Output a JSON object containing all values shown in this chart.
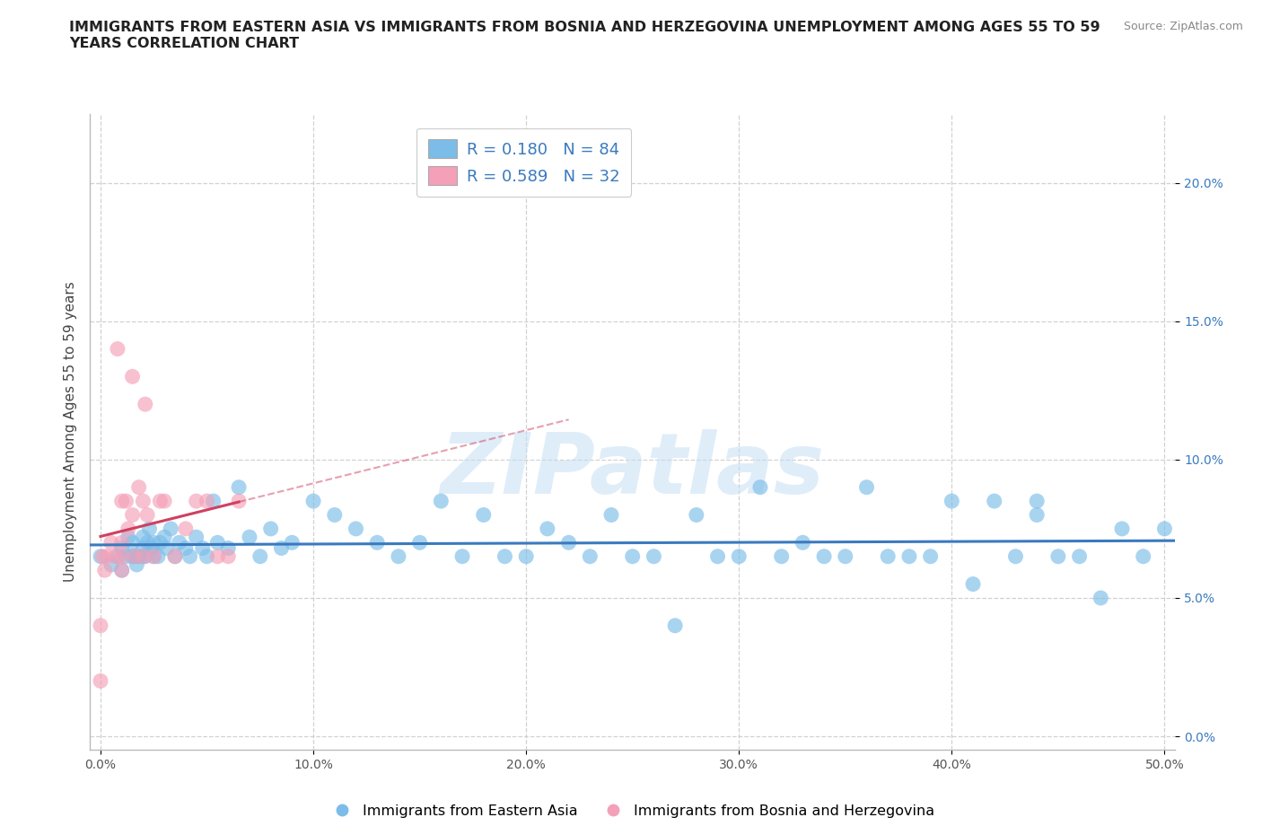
{
  "title": "IMMIGRANTS FROM EASTERN ASIA VS IMMIGRANTS FROM BOSNIA AND HERZEGOVINA UNEMPLOYMENT AMONG AGES 55 TO 59\nYEARS CORRELATION CHART",
  "source_text": "Source: ZipAtlas.com",
  "ylabel": "Unemployment Among Ages 55 to 59 years",
  "xlim": [
    -0.005,
    0.505
  ],
  "ylim": [
    -0.005,
    0.225
  ],
  "xticks": [
    0.0,
    0.1,
    0.2,
    0.3,
    0.4,
    0.5
  ],
  "xticklabels": [
    "0.0%",
    "10.0%",
    "20.0%",
    "30.0%",
    "40.0%",
    "50.0%"
  ],
  "yticks": [
    0.0,
    0.05,
    0.1,
    0.15,
    0.2
  ],
  "yticklabels": [
    "0.0%",
    "5.0%",
    "10.0%",
    "15.0%",
    "20.0%"
  ],
  "watermark_text": "ZIPatlas",
  "color_blue": "#7bbde8",
  "color_pink": "#f4a0b8",
  "trendline_blue": "#3a7abf",
  "trendline_pink": "#d04060",
  "background_color": "#ffffff",
  "grid_color": "#cccccc",
  "label_blue": "Immigrants from Eastern Asia",
  "label_pink": "Immigrants from Bosnia and Herzegovina",
  "blue_x": [
    0.0,
    0.005,
    0.008,
    0.01,
    0.01,
    0.012,
    0.013,
    0.015,
    0.015,
    0.016,
    0.017,
    0.018,
    0.02,
    0.02,
    0.02,
    0.021,
    0.022,
    0.023,
    0.024,
    0.025,
    0.025,
    0.027,
    0.028,
    0.03,
    0.031,
    0.033,
    0.035,
    0.037,
    0.04,
    0.042,
    0.045,
    0.048,
    0.05,
    0.053,
    0.055,
    0.06,
    0.065,
    0.07,
    0.075,
    0.08,
    0.085,
    0.09,
    0.1,
    0.11,
    0.12,
    0.13,
    0.14,
    0.15,
    0.16,
    0.17,
    0.18,
    0.19,
    0.2,
    0.21,
    0.22,
    0.23,
    0.24,
    0.25,
    0.26,
    0.27,
    0.28,
    0.29,
    0.3,
    0.31,
    0.32,
    0.33,
    0.34,
    0.35,
    0.36,
    0.37,
    0.38,
    0.39,
    0.4,
    0.41,
    0.42,
    0.43,
    0.44,
    0.45,
    0.46,
    0.47,
    0.48,
    0.49,
    0.5,
    0.44
  ],
  "blue_y": [
    0.065,
    0.062,
    0.065,
    0.068,
    0.06,
    0.065,
    0.072,
    0.065,
    0.07,
    0.065,
    0.062,
    0.065,
    0.065,
    0.068,
    0.072,
    0.065,
    0.07,
    0.075,
    0.068,
    0.065,
    0.07,
    0.065,
    0.07,
    0.072,
    0.068,
    0.075,
    0.065,
    0.07,
    0.068,
    0.065,
    0.072,
    0.068,
    0.065,
    0.085,
    0.07,
    0.068,
    0.09,
    0.072,
    0.065,
    0.075,
    0.068,
    0.07,
    0.085,
    0.08,
    0.075,
    0.07,
    0.065,
    0.07,
    0.085,
    0.065,
    0.08,
    0.065,
    0.065,
    0.075,
    0.07,
    0.065,
    0.08,
    0.065,
    0.065,
    0.04,
    0.08,
    0.065,
    0.065,
    0.09,
    0.065,
    0.07,
    0.065,
    0.065,
    0.09,
    0.065,
    0.065,
    0.065,
    0.085,
    0.055,
    0.085,
    0.065,
    0.08,
    0.065,
    0.065,
    0.05,
    0.075,
    0.065,
    0.075,
    0.085
  ],
  "pink_x": [
    0.0,
    0.0,
    0.001,
    0.002,
    0.003,
    0.005,
    0.007,
    0.008,
    0.01,
    0.01,
    0.01,
    0.01,
    0.012,
    0.013,
    0.015,
    0.015,
    0.016,
    0.018,
    0.02,
    0.02,
    0.021,
    0.022,
    0.025,
    0.028,
    0.03,
    0.035,
    0.04,
    0.045,
    0.05,
    0.055,
    0.06,
    0.065
  ],
  "pink_y": [
    0.04,
    0.02,
    0.065,
    0.06,
    0.065,
    0.07,
    0.065,
    0.14,
    0.06,
    0.065,
    0.07,
    0.085,
    0.085,
    0.075,
    0.13,
    0.08,
    0.065,
    0.09,
    0.085,
    0.065,
    0.12,
    0.08,
    0.065,
    0.085,
    0.085,
    0.065,
    0.075,
    0.085,
    0.085,
    0.065,
    0.065,
    0.085
  ],
  "title_fontsize": 11.5,
  "axis_label_fontsize": 11,
  "tick_fontsize": 10,
  "legend_fontsize": 13
}
